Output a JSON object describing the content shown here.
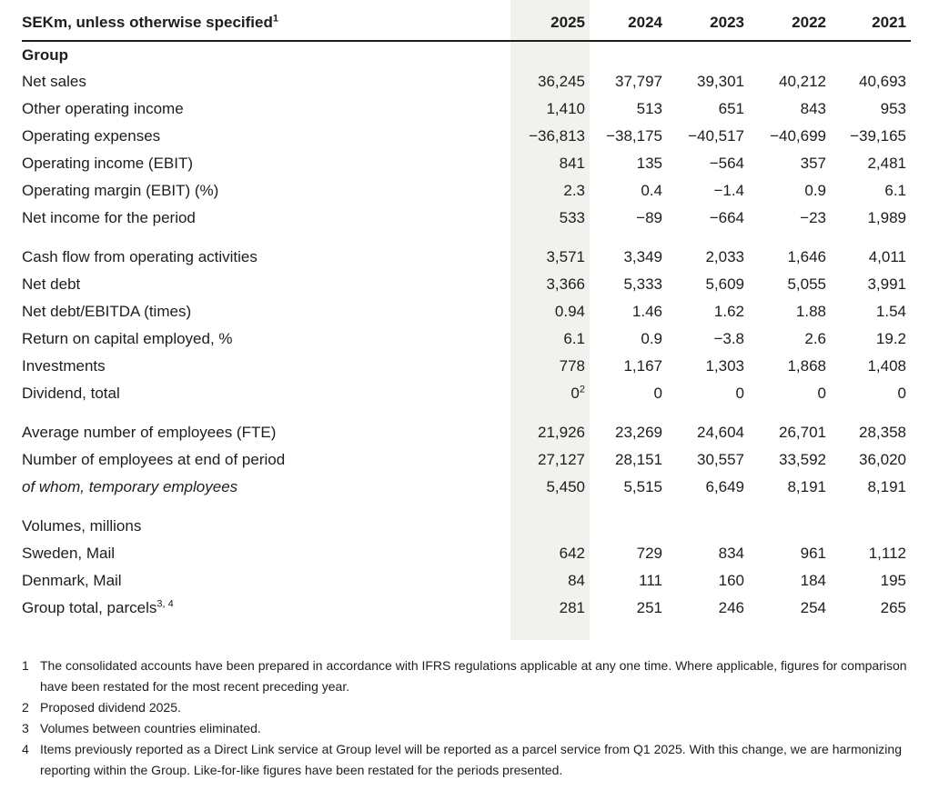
{
  "colors": {
    "highlight_bg": "#f1f1ee",
    "text_color": "#1d1d1b",
    "header_rule": "#1d1d1b"
  },
  "table": {
    "header": {
      "label": "SEKm, unless otherwise specified",
      "label_sup": "1",
      "years": [
        "2025",
        "2024",
        "2023",
        "2022",
        "2021"
      ],
      "highlighted_year": "2025"
    },
    "sections": [
      {
        "title": "Group",
        "title_bold": true,
        "rows": [
          {
            "label": "Net sales",
            "values": [
              "36,245",
              "37,797",
              "39,301",
              "40,212",
              "40,693"
            ]
          },
          {
            "label": "Other operating income",
            "values": [
              "1,410",
              "513",
              "651",
              "843",
              "953"
            ]
          },
          {
            "label": "Operating expenses",
            "values": [
              "−36,813",
              "−38,175",
              "−40,517",
              "−40,699",
              "−39,165"
            ]
          },
          {
            "label": "Operating income (EBIT)",
            "values": [
              "841",
              "135",
              "−564",
              "357",
              "2,481"
            ]
          },
          {
            "label": "Operating margin (EBIT) (%)",
            "values": [
              "2.3",
              "0.4",
              "−1.4",
              "0.9",
              "6.1"
            ]
          },
          {
            "label": "Net income for the period",
            "values": [
              "533",
              "−89",
              "−664",
              "−23",
              "1,989"
            ]
          }
        ]
      },
      {
        "title": "",
        "title_bold": false,
        "rows": [
          {
            "label": "Cash flow from operating activities",
            "values": [
              "3,571",
              "3,349",
              "2,033",
              "1,646",
              "4,011"
            ]
          },
          {
            "label": "Net debt",
            "values": [
              "3,366",
              "5,333",
              "5,609",
              "5,055",
              "3,991"
            ]
          },
          {
            "label": "Net debt/EBITDA (times)",
            "values": [
              "0.94",
              "1.46",
              "1.62",
              "1.88",
              "1.54"
            ]
          },
          {
            "label": "Return on capital employed, %",
            "values": [
              "6.1",
              "0.9",
              "−3.8",
              "2.6",
              "19.2"
            ]
          },
          {
            "label": "Investments",
            "values": [
              "778",
              "1,167",
              "1,303",
              "1,868",
              "1,408"
            ]
          },
          {
            "label": "Dividend, total",
            "values": [
              "0",
              "0",
              "0",
              "0",
              "0"
            ],
            "value_sups": [
              "2",
              "",
              "",
              "",
              ""
            ]
          }
        ]
      },
      {
        "title": "",
        "title_bold": false,
        "rows": [
          {
            "label": "Average number of employees (FTE)",
            "values": [
              "21,926",
              "23,269",
              "24,604",
              "26,701",
              "28,358"
            ]
          },
          {
            "label": "Number of employees at end of period",
            "values": [
              "27,127",
              "28,151",
              "30,557",
              "33,592",
              "36,020"
            ]
          },
          {
            "label": "of whom, temporary employees",
            "italic": true,
            "values": [
              "5,450",
              "5,515",
              "6,649",
              "8,191",
              "8,191"
            ]
          }
        ]
      },
      {
        "title": "Volumes, millions",
        "title_bold": false,
        "rows": [
          {
            "label": "Sweden, Mail",
            "values": [
              "642",
              "729",
              "834",
              "961",
              "1,112"
            ]
          },
          {
            "label": "Denmark, Mail",
            "values": [
              "84",
              "111",
              "160",
              "184",
              "195"
            ]
          },
          {
            "label": "Group total, parcels",
            "label_sup": "3, 4",
            "values": [
              "281",
              "251",
              "246",
              "254",
              "265"
            ]
          }
        ]
      }
    ]
  },
  "footnotes": [
    {
      "num": "1",
      "text": "The consolidated accounts have been prepared in accordance with IFRS regulations applicable at any one time. Where applicable, figures for comparison have been restated for the most recent preceding year."
    },
    {
      "num": "2",
      "text": "Proposed dividend 2025."
    },
    {
      "num": "3",
      "text": "Volumes between countries eliminated."
    },
    {
      "num": "4",
      "text": "Items previously reported as a Direct Link service at Group level will be reported as a parcel service from Q1 2025. With this change, we are harmonizing reporting within the Group. Like-for-like figures have been restated for the periods presented."
    }
  ]
}
